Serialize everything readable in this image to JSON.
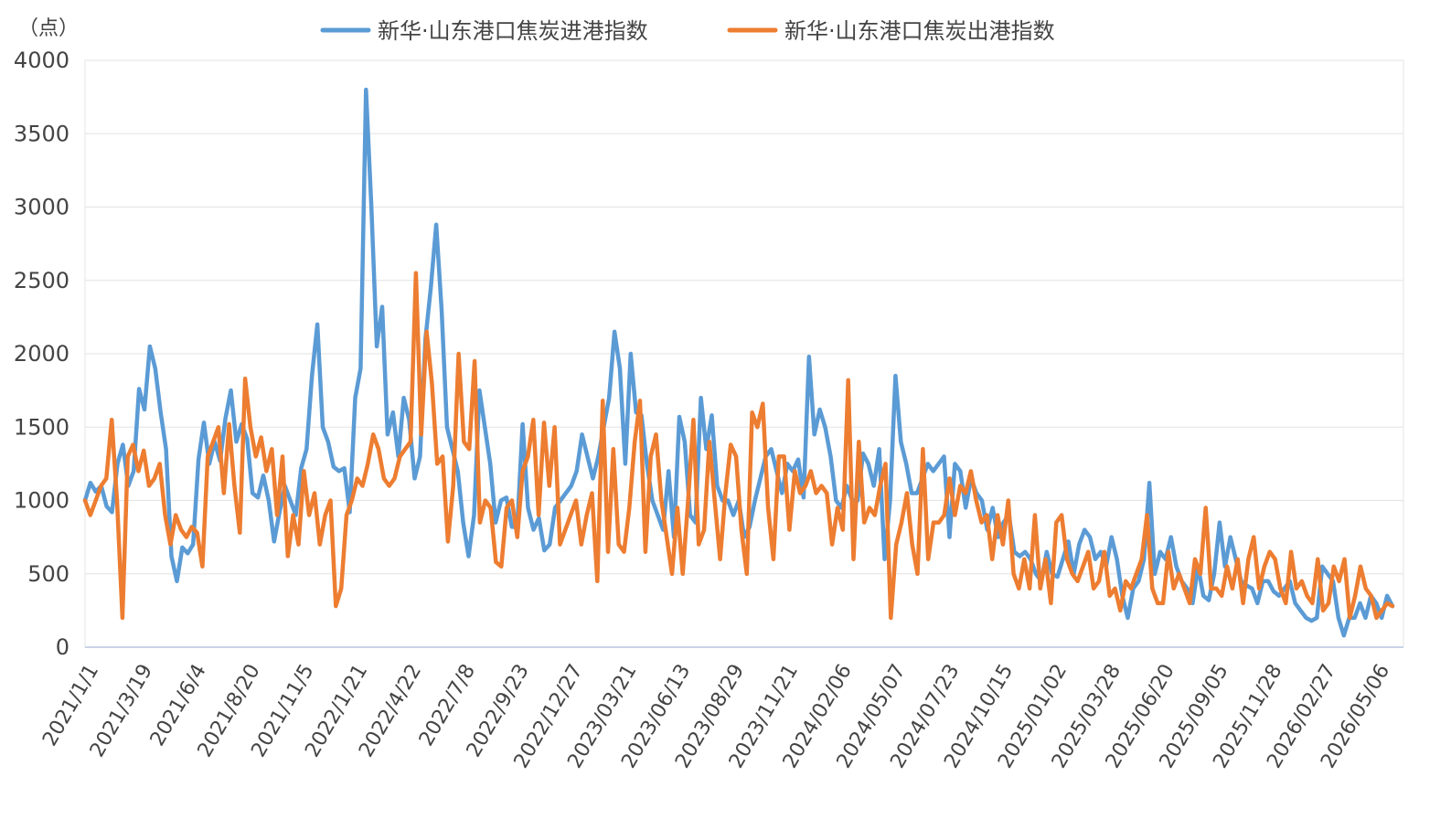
{
  "chart_data": {
    "type": "line",
    "ylabel": "（点）",
    "ylim": [
      0,
      4000
    ],
    "yticks": [
      "0",
      "500",
      "1000",
      "1500",
      "2000",
      "2500",
      "3000",
      "3500",
      "4000"
    ],
    "grid": "horizontal",
    "legend_position": "top",
    "x_tick_labels": [
      "2021/1/1",
      "2021/3/19",
      "2021/6/4",
      "2021/8/20",
      "2021/11/5",
      "2022/1/21",
      "2022/4/22",
      "2022/7/8",
      "2022/9/23",
      "2022/12/27",
      "2023/03/21",
      "2023/06/13",
      "2023/08/29",
      "2023/11/21",
      "2024/02/06",
      "2024/05/07",
      "2024/07/23",
      "2024/10/15",
      "2025/01/02",
      "2025/03/28",
      "2025/06/20",
      "2025/09/05",
      "2025/11/28",
      "2026/02/27",
      "2026/05/06"
    ],
    "series": [
      {
        "name": "新华·山东港口焦炭进港指数",
        "color": "#5B9BD5",
        "values": [
          1000,
          1120,
          1060,
          1100,
          960,
          920,
          1250,
          1380,
          1100,
          1200,
          1760,
          1620,
          2050,
          1900,
          1600,
          1350,
          620,
          450,
          680,
          640,
          700,
          1280,
          1530,
          1250,
          1400,
          1270,
          1560,
          1750,
          1400,
          1520,
          1420,
          1050,
          1020,
          1170,
          1000,
          720,
          920,
          1100,
          1000,
          900,
          1220,
          1350,
          1850,
          2200,
          1500,
          1400,
          1230,
          1200,
          1220,
          920,
          1700,
          1900,
          3800,
          3000,
          2050,
          2320,
          1450,
          1600,
          1300,
          1700,
          1550,
          1150,
          1300,
          2100,
          2450,
          2880,
          2300,
          1500,
          1350,
          1200,
          850,
          620,
          900,
          1750,
          1500,
          1250,
          850,
          1000,
          1020,
          820,
          820,
          1520,
          950,
          800,
          880,
          660,
          700,
          950,
          1000,
          1050,
          1100,
          1200,
          1450,
          1300,
          1150,
          1300,
          1500,
          1700,
          2150,
          1900,
          1250,
          2000,
          1600,
          1580,
          1250,
          1000,
          900,
          800,
          1200,
          750,
          1570,
          1400,
          900,
          850,
          1700,
          1350,
          1580,
          1100,
          1000,
          1000,
          900,
          1000,
          750,
          820,
          1000,
          1150,
          1300,
          1350,
          1200,
          1050,
          1250,
          1200,
          1280,
          1020,
          1980,
          1450,
          1620,
          1500,
          1300,
          1000,
          950,
          1100,
          1000,
          1000,
          1320,
          1250,
          1100,
          1350,
          600,
          1000,
          1850,
          1400,
          1250,
          1050,
          1050,
          1150,
          1250,
          1200,
          1250,
          1300,
          750,
          1250,
          1200,
          950,
          1150,
          1050,
          1000,
          800,
          950,
          750,
          850,
          900,
          650,
          620,
          650,
          600,
          500,
          450,
          650,
          500,
          480,
          600,
          720,
          500,
          700,
          800,
          750,
          600,
          650,
          550,
          750,
          600,
          350,
          200,
          400,
          450,
          600,
          1120,
          500,
          650,
          600,
          750,
          550,
          450,
          400,
          300,
          550,
          350,
          320,
          500,
          850,
          550,
          750,
          600,
          450,
          420,
          400,
          300,
          450,
          450,
          380,
          350,
          400,
          450,
          300,
          250,
          200,
          180,
          200,
          550,
          500,
          450,
          200,
          80,
          200,
          200,
          300,
          200,
          350,
          300,
          200,
          350,
          280
        ]
      },
      {
        "name": "新华·山东港口焦炭出港指数",
        "color": "#ED7D31",
        "values": [
          1000,
          900,
          1000,
          1100,
          1150,
          1550,
          1000,
          200,
          1300,
          1380,
          1200,
          1340,
          1100,
          1150,
          1250,
          900,
          700,
          900,
          800,
          750,
          820,
          780,
          550,
          1300,
          1400,
          1500,
          1050,
          1520,
          1100,
          780,
          1830,
          1500,
          1300,
          1430,
          1200,
          1350,
          900,
          1300,
          620,
          900,
          700,
          1200,
          900,
          1050,
          700,
          900,
          1000,
          280,
          400,
          900,
          1000,
          1150,
          1100,
          1250,
          1450,
          1350,
          1150,
          1100,
          1150,
          1300,
          1350,
          1400,
          2550,
          1450,
          2150,
          1800,
          1250,
          1300,
          720,
          1100,
          2000,
          1400,
          1350,
          1950,
          850,
          1000,
          950,
          580,
          550,
          950,
          1000,
          750,
          1200,
          1300,
          1550,
          900,
          1530,
          1100,
          1500,
          700,
          800,
          900,
          1000,
          700,
          900,
          1050,
          450,
          1680,
          650,
          1350,
          700,
          650,
          950,
          1400,
          1680,
          650,
          1300,
          1450,
          1000,
          750,
          500,
          950,
          500,
          1000,
          1550,
          700,
          800,
          1400,
          1000,
          600,
          1050,
          1380,
          1300,
          800,
          500,
          1600,
          1500,
          1660,
          950,
          600,
          1300,
          1300,
          800,
          1200,
          1050,
          1100,
          1200,
          1050,
          1100,
          1050,
          700,
          950,
          800,
          1820,
          600,
          1400,
          850,
          950,
          900,
          1100,
          1250,
          200,
          700,
          850,
          1050,
          700,
          500,
          1350,
          600,
          850,
          850,
          900,
          1150,
          900,
          1100,
          1050,
          1200,
          1000,
          850,
          900,
          600,
          900,
          700,
          1000,
          500,
          400,
          600,
          400,
          900,
          400,
          600,
          300,
          850,
          900,
          600,
          500,
          450,
          550,
          650,
          400,
          450,
          650,
          350,
          400,
          250,
          450,
          400,
          500,
          600,
          900,
          400,
          300,
          300,
          650,
          400,
          500,
          400,
          300,
          600,
          500,
          950,
          400,
          400,
          350,
          550,
          400,
          600,
          300,
          600,
          750,
          400,
          550,
          650,
          600,
          400,
          300,
          650,
          400,
          450,
          350,
          300,
          600,
          250,
          300,
          550,
          450,
          600,
          200,
          350,
          550,
          400,
          350,
          200,
          250,
          300,
          280
        ]
      }
    ]
  }
}
